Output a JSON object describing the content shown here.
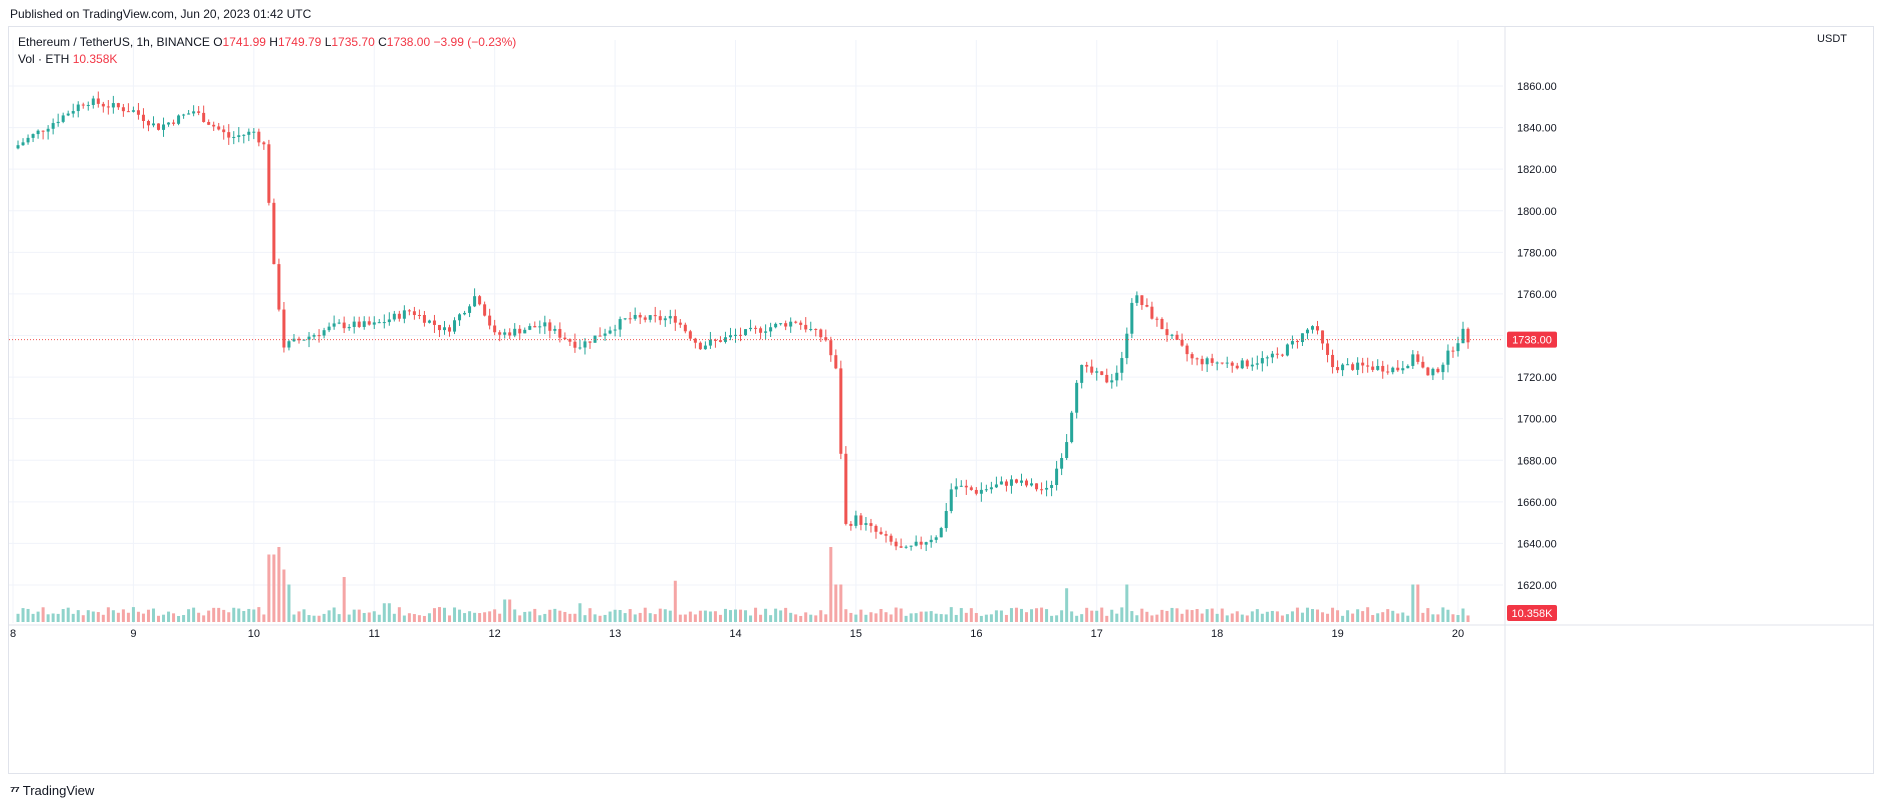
{
  "published": "Published on TradingView.com, Jun 20, 2023 01:42 UTC",
  "legend": {
    "symbol": "Ethereum / TetherUS, 1h, BINANCE",
    "o_label": "O",
    "o": "1741.99",
    "h_label": "H",
    "h": "1749.79",
    "l_label": "L",
    "l": "1735.70",
    "c_label": "C",
    "c": "1738.00",
    "change": "−3.99 (−0.23%)",
    "vol_label": "Vol · ETH",
    "vol": "10.358K"
  },
  "currency": "USDT",
  "footer": "TradingView",
  "colors": {
    "up": "#26a69a",
    "down": "#ef5350",
    "up_vol": "#8fd3cb",
    "down_vol": "#f5a5a5",
    "grid": "#f0f3fa",
    "text": "#131722"
  },
  "chart_data": {
    "type": "candlestick",
    "symbol": "ETHUSDT",
    "interval": "1h",
    "ylabel": "USDT",
    "ylim": [
      1613,
      1868
    ],
    "y_ticks": [
      1860,
      1840,
      1820,
      1800,
      1780,
      1760,
      1740,
      1720,
      1700,
      1680,
      1660,
      1640,
      1620
    ],
    "y_tick_labels": [
      "1860.00",
      "1840.00",
      "1820.00",
      "1800.00",
      "1780.00",
      "1760.00",
      "1740.00",
      "1720.00",
      "1700.00",
      "1680.00",
      "1660.00",
      "1640.00",
      "1620.00"
    ],
    "x_ticks": [
      "8",
      "9",
      "10",
      "11",
      "12",
      "13",
      "14",
      "15",
      "16",
      "17",
      "18",
      "19",
      "20"
    ],
    "last_price": 1738.0,
    "last_price_label": "1738.00",
    "last_volume_label": "10.358K",
    "grid": true,
    "keypoints": [
      {
        "day": 8.0,
        "price": 1830
      },
      {
        "day": 8.4,
        "price": 1845
      },
      {
        "day": 8.6,
        "price": 1853
      },
      {
        "day": 9.0,
        "price": 1848
      },
      {
        "day": 9.2,
        "price": 1840
      },
      {
        "day": 9.5,
        "price": 1848
      },
      {
        "day": 9.8,
        "price": 1835
      },
      {
        "day": 10.0,
        "price": 1838
      },
      {
        "day": 10.1,
        "price": 1830
      },
      {
        "day": 10.15,
        "price": 1780
      },
      {
        "day": 10.25,
        "price": 1735
      },
      {
        "day": 10.7,
        "price": 1745
      },
      {
        "day": 11.0,
        "price": 1745
      },
      {
        "day": 11.3,
        "price": 1752
      },
      {
        "day": 11.6,
        "price": 1742
      },
      {
        "day": 11.85,
        "price": 1760
      },
      {
        "day": 12.0,
        "price": 1740
      },
      {
        "day": 12.4,
        "price": 1745
      },
      {
        "day": 12.7,
        "price": 1735
      },
      {
        "day": 13.1,
        "price": 1748
      },
      {
        "day": 13.5,
        "price": 1748
      },
      {
        "day": 13.7,
        "price": 1735
      },
      {
        "day": 14.0,
        "price": 1740
      },
      {
        "day": 14.5,
        "price": 1747
      },
      {
        "day": 14.75,
        "price": 1738
      },
      {
        "day": 14.85,
        "price": 1720
      },
      {
        "day": 14.9,
        "price": 1648
      },
      {
        "day": 15.0,
        "price": 1652
      },
      {
        "day": 15.4,
        "price": 1636
      },
      {
        "day": 15.7,
        "price": 1645
      },
      {
        "day": 15.8,
        "price": 1668
      },
      {
        "day": 16.0,
        "price": 1665
      },
      {
        "day": 16.3,
        "price": 1670
      },
      {
        "day": 16.6,
        "price": 1665
      },
      {
        "day": 16.75,
        "price": 1690
      },
      {
        "day": 16.85,
        "price": 1725
      },
      {
        "day": 17.1,
        "price": 1718
      },
      {
        "day": 17.2,
        "price": 1725
      },
      {
        "day": 17.3,
        "price": 1760
      },
      {
        "day": 17.6,
        "price": 1740
      },
      {
        "day": 17.8,
        "price": 1728
      },
      {
        "day": 18.2,
        "price": 1726
      },
      {
        "day": 18.5,
        "price": 1730
      },
      {
        "day": 18.8,
        "price": 1745
      },
      {
        "day": 18.95,
        "price": 1725
      },
      {
        "day": 19.2,
        "price": 1725
      },
      {
        "day": 19.5,
        "price": 1724
      },
      {
        "day": 19.65,
        "price": 1730
      },
      {
        "day": 19.75,
        "price": 1720
      },
      {
        "day": 19.85,
        "price": 1725
      },
      {
        "day": 20.0,
        "price": 1738
      },
      {
        "day": 20.05,
        "price": 1741.99
      },
      {
        "day": 20.08,
        "price": 1738
      }
    ],
    "volume_spikes": [
      {
        "day": 10.15,
        "level": 0.9
      },
      {
        "day": 10.2,
        "level": 1.0
      },
      {
        "day": 10.25,
        "level": 0.7
      },
      {
        "day": 10.3,
        "level": 0.5
      },
      {
        "day": 10.75,
        "level": 0.6
      },
      {
        "day": 14.8,
        "level": 1.0
      },
      {
        "day": 14.85,
        "level": 0.5
      },
      {
        "day": 13.5,
        "level": 0.55
      },
      {
        "day": 16.75,
        "level": 0.45
      },
      {
        "day": 17.25,
        "level": 0.5
      },
      {
        "day": 19.65,
        "level": 0.5
      },
      {
        "day": 11.1,
        "level": 0.25
      },
      {
        "day": 12.1,
        "level": 0.3
      },
      {
        "day": 12.7,
        "level": 0.25
      }
    ]
  }
}
